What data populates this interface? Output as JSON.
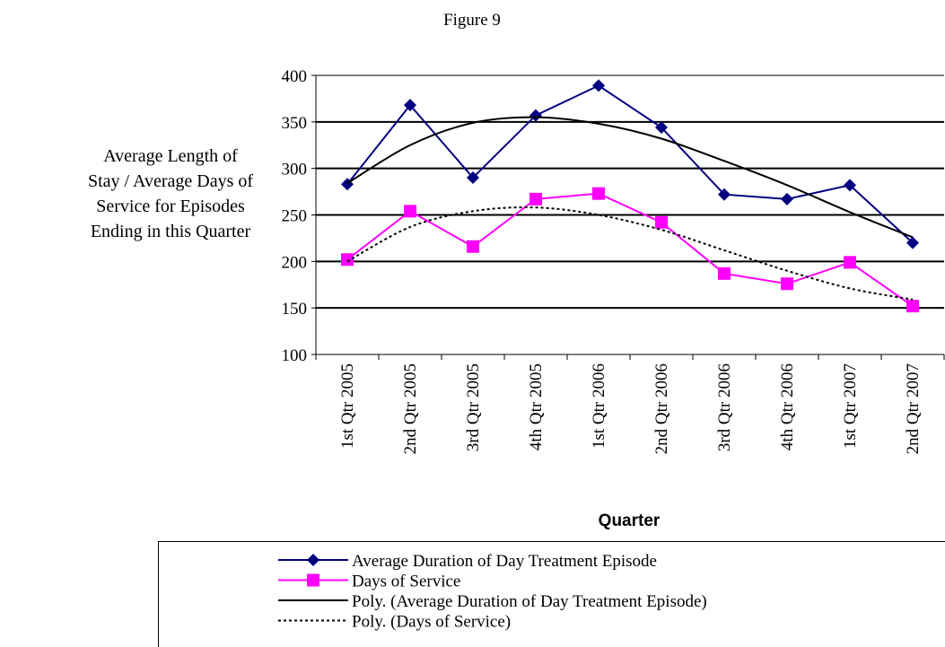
{
  "chart_data": {
    "type": "line",
    "title": "Figure 9",
    "x_label": "Quarter",
    "y_label": "Average Length of Stay / Average Days of Service for Episodes Ending in this Quarter",
    "categories": [
      "1st Qtr 2005",
      "2nd Qtr 2005",
      "3rd Qtr 2005",
      "4th Qtr 2005",
      "1st Qtr 2006",
      "2nd Qtr 2006",
      "3rd Qtr 2006",
      "4th Qtr 2006",
      "1st Qtr 2007",
      "2nd Qtr 2007"
    ],
    "series": [
      {
        "name": "Average Duration of Day Treatment Episode",
        "color": "#000080",
        "marker": "diamond",
        "values": [
          283,
          368,
          290,
          357,
          389,
          344,
          272,
          267,
          282,
          220
        ]
      },
      {
        "name": "Days of Service",
        "color": "#ff00ff",
        "marker": "square",
        "values": [
          202,
          254,
          216,
          267,
          273,
          242,
          187,
          176,
          199,
          152
        ]
      },
      {
        "name": "Poly. (Average Duration of Day Treatment Episode)",
        "color": "#000000",
        "style": "solid",
        "values": [
          284,
          325,
          349,
          355,
          348,
          332,
          308,
          282,
          253,
          226
        ]
      },
      {
        "name": "Poly. (Days of Service)",
        "color": "#000000",
        "style": "dotted",
        "values": [
          200,
          237,
          254,
          258,
          250,
          234,
          212,
          190,
          171,
          159
        ]
      }
    ],
    "ylim": [
      100,
      400
    ],
    "yticks": [
      100,
      150,
      200,
      250,
      300,
      350,
      400
    ],
    "grid": true
  }
}
